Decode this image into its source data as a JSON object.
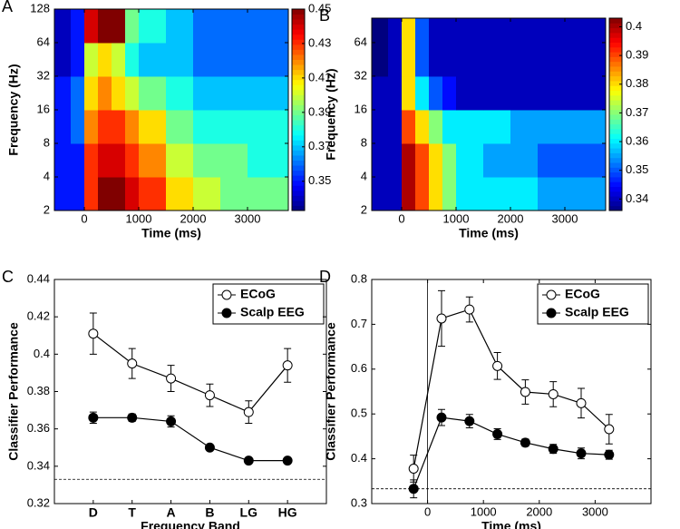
{
  "chart_data": [
    {
      "type": "heatmap",
      "panel_label": "A",
      "xlabel": "Time (ms)",
      "ylabel": "Frequency (Hz)",
      "xlim": [
        -550,
        3750
      ],
      "xticks": [
        0,
        1000,
        2000,
        3000
      ],
      "ylim": [
        2,
        128
      ],
      "yticks": [
        2,
        4,
        8,
        16,
        32,
        64,
        128
      ],
      "log_y": true,
      "x_edges": [
        -550,
        -250,
        0,
        250,
        500,
        750,
        1000,
        1500,
        2000,
        2500,
        3000,
        3750
      ],
      "y_edges": [
        2,
        4,
        8,
        16,
        32,
        64,
        128
      ],
      "values": [
        [
          0.35,
          0.35,
          0.43,
          0.45,
          0.45,
          0.44,
          0.43,
          0.41,
          0.4,
          0.39,
          0.39
        ],
        [
          0.35,
          0.35,
          0.43,
          0.44,
          0.44,
          0.43,
          0.42,
          0.4,
          0.39,
          0.39,
          0.38
        ],
        [
          0.35,
          0.36,
          0.42,
          0.43,
          0.43,
          0.42,
          0.41,
          0.39,
          0.38,
          0.38,
          0.38
        ],
        [
          0.35,
          0.36,
          0.41,
          0.42,
          0.41,
          0.4,
          0.39,
          0.38,
          0.37,
          0.37,
          0.37
        ],
        [
          0.34,
          0.35,
          0.4,
          0.41,
          0.4,
          0.38,
          0.37,
          0.37,
          0.36,
          0.36,
          0.36
        ],
        [
          0.34,
          0.35,
          0.44,
          0.45,
          0.45,
          0.39,
          0.38,
          0.37,
          0.36,
          0.36,
          0.36
        ]
      ],
      "colorbar": {
        "lim": [
          0.333,
          0.45
        ],
        "ticks": [
          0.35,
          0.37,
          0.39,
          0.41,
          0.43,
          0.45
        ],
        "colormap": "jet"
      }
    },
    {
      "type": "heatmap",
      "panel_label": "B",
      "xlabel": "Time (ms)",
      "ylabel": "Frequency (Hz)",
      "xlim": [
        -550,
        3750
      ],
      "xticks": [
        0,
        1000,
        2000,
        3000
      ],
      "ylim": [
        2,
        106
      ],
      "yticks": [
        2,
        4,
        8,
        16,
        32,
        64
      ],
      "log_y": true,
      "x_edges": [
        -550,
        -250,
        0,
        250,
        500,
        750,
        1000,
        1500,
        2000,
        2500,
        3000,
        3750
      ],
      "y_edges": [
        2,
        4,
        8,
        16,
        32,
        64,
        106
      ],
      "values": [
        [
          0.34,
          0.34,
          0.4,
          0.39,
          0.38,
          0.37,
          0.36,
          0.36,
          0.36,
          0.355,
          0.355
        ],
        [
          0.34,
          0.34,
          0.4,
          0.39,
          0.38,
          0.37,
          0.36,
          0.355,
          0.355,
          0.35,
          0.35
        ],
        [
          0.34,
          0.34,
          0.39,
          0.38,
          0.37,
          0.36,
          0.36,
          0.36,
          0.355,
          0.355,
          0.355
        ],
        [
          0.34,
          0.34,
          0.38,
          0.36,
          0.35,
          0.345,
          0.34,
          0.34,
          0.34,
          0.34,
          0.34
        ],
        [
          0.335,
          0.34,
          0.38,
          0.35,
          0.34,
          0.34,
          0.34,
          0.34,
          0.34,
          0.34,
          0.34
        ],
        [
          0.335,
          0.34,
          0.38,
          0.35,
          0.34,
          0.34,
          0.34,
          0.34,
          0.34,
          0.34,
          0.34
        ]
      ],
      "colorbar": {
        "lim": [
          0.336,
          0.403
        ],
        "ticks": [
          0.34,
          0.35,
          0.36,
          0.37,
          0.38,
          0.39,
          0.4
        ],
        "colormap": "jet"
      }
    },
    {
      "type": "line",
      "panel_label": "C",
      "xlabel": "Frequency Band",
      "ylabel": "Classifier Performance",
      "categories": [
        "D",
        "T",
        "A",
        "B",
        "LG",
        "HG"
      ],
      "ylim": [
        0.32,
        0.44
      ],
      "yticks": [
        0.32,
        0.34,
        0.36,
        0.38,
        0.4,
        0.42,
        0.44
      ],
      "reference_line": 0.333,
      "legend": "upper right",
      "series": [
        {
          "name": "ECoG",
          "marker": "open",
          "color": "#000000",
          "values": [
            0.411,
            0.395,
            0.387,
            0.378,
            0.369,
            0.394
          ],
          "errors": [
            0.011,
            0.008,
            0.007,
            0.006,
            0.006,
            0.009
          ]
        },
        {
          "name": "Scalp EEG",
          "marker": "filled",
          "color": "#000000",
          "values": [
            0.366,
            0.366,
            0.364,
            0.35,
            0.343,
            0.343
          ],
          "errors": [
            0.003,
            0.002,
            0.003,
            0.001,
            0.001,
            0.001
          ]
        }
      ]
    },
    {
      "type": "line",
      "panel_label": "D",
      "xlabel": "Time (ms)",
      "ylabel": "Classifier Performance",
      "x": [
        -250,
        250,
        750,
        1250,
        1750,
        2250,
        2750,
        3250
      ],
      "xlim": [
        -1000,
        4000
      ],
      "xticks": [
        0,
        1000,
        2000,
        3000
      ],
      "ylim": [
        0.3,
        0.8
      ],
      "yticks": [
        0.3,
        0.4,
        0.5,
        0.6,
        0.7,
        0.8
      ],
      "reference_line": 0.333,
      "vertical_line": 0,
      "legend": "upper right",
      "series": [
        {
          "name": "ECoG",
          "marker": "open",
          "color": "#000000",
          "values": [
            0.378,
            0.713,
            0.733,
            0.607,
            0.549,
            0.544,
            0.524,
            0.466
          ],
          "errors": [
            0.03,
            0.062,
            0.028,
            0.03,
            0.027,
            0.028,
            0.033,
            0.033
          ]
        },
        {
          "name": "Scalp EEG",
          "marker": "filled",
          "color": "#000000",
          "values": [
            0.333,
            0.492,
            0.484,
            0.455,
            0.436,
            0.422,
            0.412,
            0.409
          ],
          "errors": [
            0.02,
            0.018,
            0.015,
            0.012,
            0.008,
            0.01,
            0.012,
            0.01
          ]
        }
      ]
    }
  ]
}
